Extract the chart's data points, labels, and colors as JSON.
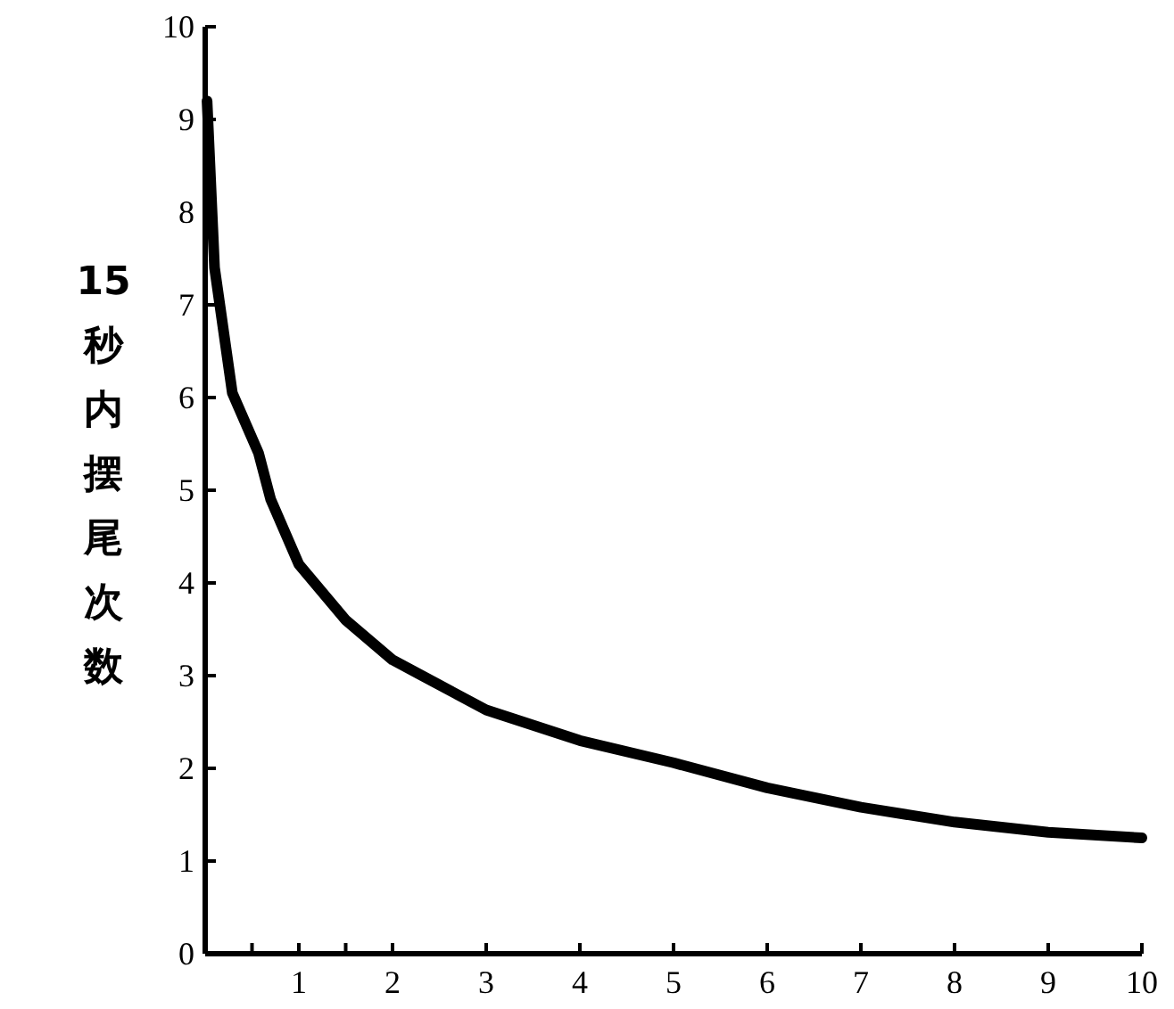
{
  "chart_data": {
    "type": "line",
    "ylabel": "15秒内摆尾次数",
    "xlim": [
      0,
      10
    ],
    "ylim": [
      0,
      10
    ],
    "xticks": [
      {
        "value": 0.5,
        "label": null
      },
      1,
      {
        "value": 1.5,
        "label": null
      },
      2,
      3,
      4,
      5,
      6,
      7,
      8,
      9,
      10
    ],
    "yticks": [
      0,
      1,
      2,
      3,
      4,
      5,
      6,
      7,
      8,
      9,
      10
    ],
    "series": [
      {
        "color": "#000000",
        "x": [
          0.02,
          0.1,
          0.29,
          0.57,
          0.7,
          1,
          1.5,
          2,
          3,
          4,
          5,
          6,
          7,
          8,
          9,
          10
        ],
        "values": [
          9.2,
          7.4,
          6.05,
          5.4,
          4.9,
          4.2,
          3.6,
          3.17,
          2.63,
          2.3,
          2.06,
          1.79,
          1.58,
          1.42,
          1.31,
          1.25
        ]
      }
    ],
    "grid": false,
    "marker": "none",
    "line_style": "solid"
  }
}
